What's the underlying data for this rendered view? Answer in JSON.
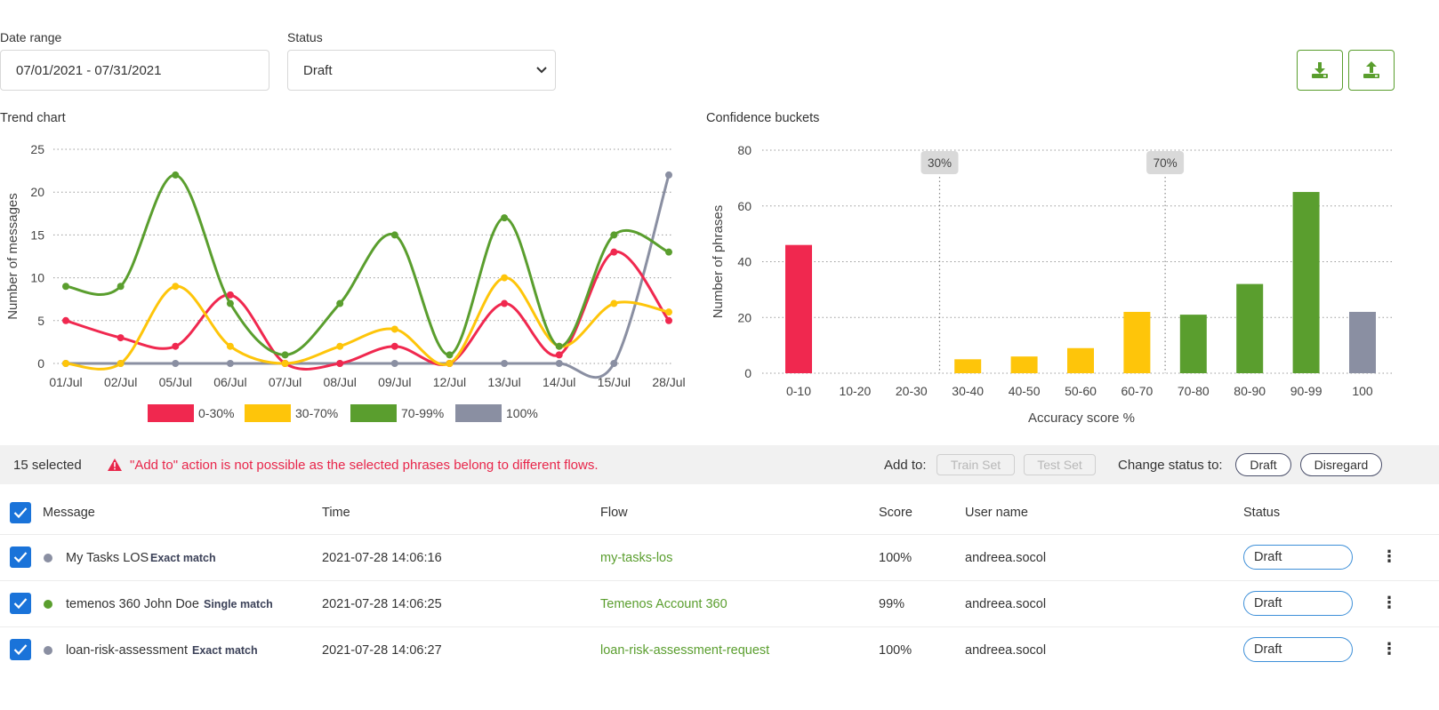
{
  "filters": {
    "date_range_label": "Date range",
    "date_range_value": "07/01/2021 - 07/31/2021",
    "status_label": "Status",
    "status_value": "Draft"
  },
  "toolbar": {
    "download_icon": "download-icon",
    "upload_icon": "upload-icon"
  },
  "trend": {
    "title": "Trend chart"
  },
  "buckets": {
    "title": "Confidence buckets"
  },
  "colors": {
    "red": "#f0284f",
    "yellow": "#fec50a",
    "green": "#5a9e2e",
    "gray": "#8a8fa2",
    "blue": "#1a73d9"
  },
  "chart_data": [
    {
      "type": "line",
      "title": "Trend chart",
      "xlabel": "",
      "ylabel": "Number of messages",
      "categories": [
        "01/Jul",
        "02/Jul",
        "05/Jul",
        "06/Jul",
        "07/Jul",
        "08/Jul",
        "09/Jul",
        "12/Jul",
        "13/Jul",
        "14/Jul",
        "15/Jul",
        "28/Jul"
      ],
      "yticks": [
        0,
        5,
        10,
        15,
        20,
        25
      ],
      "ylim": [
        0,
        25
      ],
      "grid": true,
      "legend_position": "bottom",
      "series": [
        {
          "name": "0-30%",
          "color": "#f0284f",
          "values": [
            5,
            3,
            2,
            8,
            0,
            0,
            2,
            0,
            7,
            1,
            13,
            5
          ]
        },
        {
          "name": "30-70%",
          "color": "#fec50a",
          "values": [
            0,
            0,
            9,
            2,
            0,
            2,
            4,
            0,
            10,
            2,
            7,
            6
          ]
        },
        {
          "name": "70-99%",
          "color": "#5a9e2e",
          "values": [
            9,
            9,
            22,
            7,
            1,
            7,
            15,
            1,
            17,
            2,
            15,
            13
          ]
        },
        {
          "name": "100%",
          "color": "#8a8fa2",
          "values": [
            0,
            0,
            0,
            0,
            0,
            0,
            0,
            0,
            0,
            0,
            0,
            22
          ]
        }
      ]
    },
    {
      "type": "bar",
      "title": "Confidence buckets",
      "xlabel": "Accuracy score %",
      "ylabel": "Number of phrases",
      "categories": [
        "0-10",
        "10-20",
        "20-30",
        "30-40",
        "40-50",
        "50-60",
        "60-70",
        "70-80",
        "80-90",
        "90-99",
        "100"
      ],
      "values": [
        46,
        0,
        0,
        5,
        6,
        9,
        22,
        21,
        32,
        65,
        22
      ],
      "colors": [
        "#f0284f",
        "#f0284f",
        "#f0284f",
        "#fec50a",
        "#fec50a",
        "#fec50a",
        "#fec50a",
        "#5a9e2e",
        "#5a9e2e",
        "#5a9e2e",
        "#8a8fa2"
      ],
      "yticks": [
        0,
        20,
        40,
        60,
        80
      ],
      "ylim": [
        0,
        80
      ],
      "grid": true,
      "markers": [
        "30%",
        "70%"
      ]
    }
  ],
  "selection": {
    "count": "15 selected",
    "warning": "\"Add to\" action is not possible as the selected phrases belong to different flows.",
    "add_to_label": "Add to:",
    "train_set": "Train Set",
    "test_set": "Test Set",
    "change_status_label": "Change status to:",
    "draft": "Draft",
    "disregard": "Disregard"
  },
  "table": {
    "columns": [
      "Message",
      "Time",
      "Flow",
      "Score",
      "User name",
      "Status"
    ],
    "rows": [
      {
        "message": "My Tasks LOS",
        "match": "Exact match",
        "dot": "#8a8fa2",
        "time": "2021-07-28 14:06:16",
        "flow": "my-tasks-los",
        "score": "100%",
        "user": "andreea.socol",
        "status": "Draft"
      },
      {
        "message": "temenos 360 John Doe",
        "match": "Single match",
        "dot": "#5a9e2e",
        "time": "2021-07-28 14:06:25",
        "flow": "Temenos Account 360",
        "score": "99%",
        "user": "andreea.socol",
        "status": "Draft"
      },
      {
        "message": "loan-risk-assessment",
        "match": "Exact match",
        "dot": "#8a8fa2",
        "time": "2021-07-28 14:06:27",
        "flow": "loan-risk-assessment-request",
        "score": "100%",
        "user": "andreea.socol",
        "status": "Draft"
      }
    ]
  }
}
